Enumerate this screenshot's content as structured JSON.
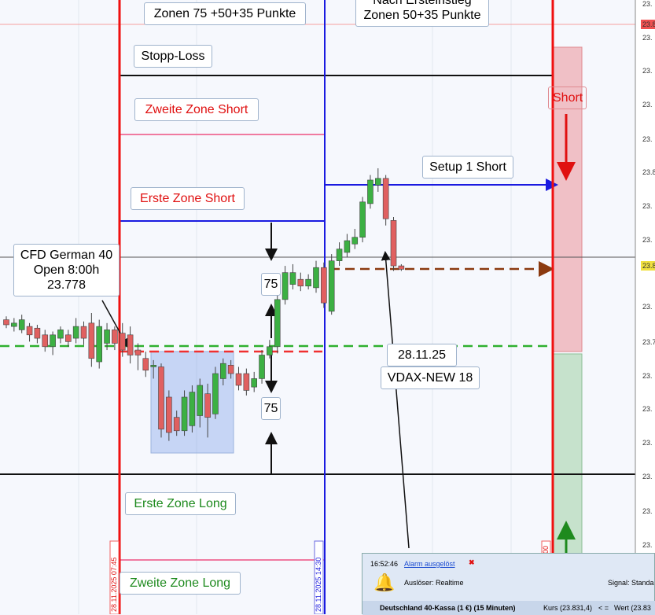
{
  "labels": {
    "zonen_top": "Zonen 75 +50+35 Punkte",
    "nach_1": "Nach Ersteinstieg",
    "nach_2": "Zonen 50+35 Punkte",
    "stopp": "Stopp-Loss",
    "zweite_short": "Zweite Zone Short",
    "erste_short": "Erste Zone Short",
    "setup": "Setup 1 Short",
    "short": "Short",
    "cfd_1": "CFD German 40",
    "cfd_2": "Open 8:00h",
    "cfd_3": "23.778",
    "pts_up": "75",
    "pts_down": "75",
    "date": "28.11.25",
    "vdax": "VDAX-NEW 18",
    "erste_long": "Erste Zone Long",
    "zweite_long": "Zweite Zone Long",
    "vdate_1": "28.11.2025 07:45",
    "vdate_2": "28.11.2025 14:30",
    "vdate_3": "00"
  },
  "axis_labels": [
    "23.",
    "23.8",
    "23.",
    "23.",
    "23.",
    "23.",
    "23.8",
    "23.",
    "23.",
    "23.8",
    "23.",
    "23.7",
    "23.",
    "23.",
    "23.",
    "23.",
    "23.",
    "23."
  ],
  "popup": {
    "time": "16:52:46",
    "alarm": "Alarm ausgelöst",
    "trigger": "Auslöser: Realtime",
    "signal": "Signal: Standa",
    "instrument": "Deutschland 40-Kassa (1 €) (15 Minuten)",
    "price": "Kurs (23.831,4)",
    "op": "< =",
    "value": "Wert (23.83"
  },
  "chart_data": {
    "type": "candlestick",
    "ylim": [
      23619,
      23984
    ],
    "candles": [
      [
        23794,
        23796,
        23789,
        23791
      ],
      [
        23790,
        23795,
        23787,
        23792
      ],
      [
        23788,
        23797,
        23786,
        23794
      ],
      [
        23790,
        23792,
        23781,
        23785
      ],
      [
        23789,
        23791,
        23780,
        23783
      ],
      [
        23785,
        23788,
        23775,
        23778
      ],
      [
        23778,
        23787,
        23773,
        23785
      ],
      [
        23783,
        23790,
        23780,
        23788
      ],
      [
        23785,
        23788,
        23778,
        23781
      ],
      [
        23783,
        23795,
        23780,
        23790
      ],
      [
        23790,
        23793,
        23779,
        23783
      ],
      [
        23792,
        23798,
        23766,
        23771
      ],
      [
        23769,
        23794,
        23765,
        23790
      ],
      [
        23780,
        23792,
        23776,
        23788
      ],
      [
        23788,
        23790,
        23776,
        23780
      ],
      [
        23786,
        23792,
        23772,
        23776
      ],
      [
        23785,
        23790,
        23768,
        23773
      ],
      [
        23776,
        23780,
        23764,
        23773
      ],
      [
        23771,
        23775,
        23760,
        23764
      ],
      [
        23766,
        23770,
        23759,
        23767
      ],
      [
        23766,
        23768,
        23724,
        23729
      ],
      [
        23748,
        23752,
        23722,
        23727
      ],
      [
        23736,
        23740,
        23725,
        23728
      ],
      [
        23728,
        23752,
        23725,
        23748
      ],
      [
        23731,
        23755,
        23727,
        23751
      ],
      [
        23737,
        23759,
        23730,
        23755
      ],
      [
        23750,
        23756,
        23724,
        23736
      ],
      [
        23738,
        23766,
        23735,
        23762
      ],
      [
        23759,
        23771,
        23755,
        23768
      ],
      [
        23767,
        23770,
        23759,
        23762
      ],
      [
        23762,
        23766,
        23752,
        23755
      ],
      [
        23762,
        23765,
        23749,
        23752
      ],
      [
        23754,
        23763,
        23751,
        23759
      ],
      [
        23759,
        23776,
        23756,
        23773
      ],
      [
        23773,
        23782,
        23771,
        23778
      ],
      [
        23778,
        23812,
        23774,
        23806
      ],
      [
        23806,
        23826,
        23803,
        23822
      ],
      [
        23815,
        23827,
        23812,
        23822
      ],
      [
        23818,
        23822,
        23811,
        23814
      ],
      [
        23814,
        23821,
        23812,
        23818
      ],
      [
        23813,
        23829,
        23810,
        23825
      ],
      [
        23825,
        23828,
        23801,
        23804
      ],
      [
        23799,
        23833,
        23797,
        23829
      ],
      [
        23829,
        23840,
        23826,
        23836
      ],
      [
        23834,
        23845,
        23831,
        23841
      ],
      [
        23839,
        23848,
        23836,
        23843
      ],
      [
        23843,
        23867,
        23840,
        23864
      ],
      [
        23863,
        23880,
        23860,
        23877
      ],
      [
        23874,
        23884,
        23870,
        23878
      ],
      [
        23878,
        23880,
        23850,
        23854
      ],
      [
        23853,
        23855,
        23823,
        23826
      ],
      [
        23826,
        23827,
        23823,
        23824
      ]
    ],
    "up_color": "#3cb043",
    "down_color": "#e06060"
  }
}
